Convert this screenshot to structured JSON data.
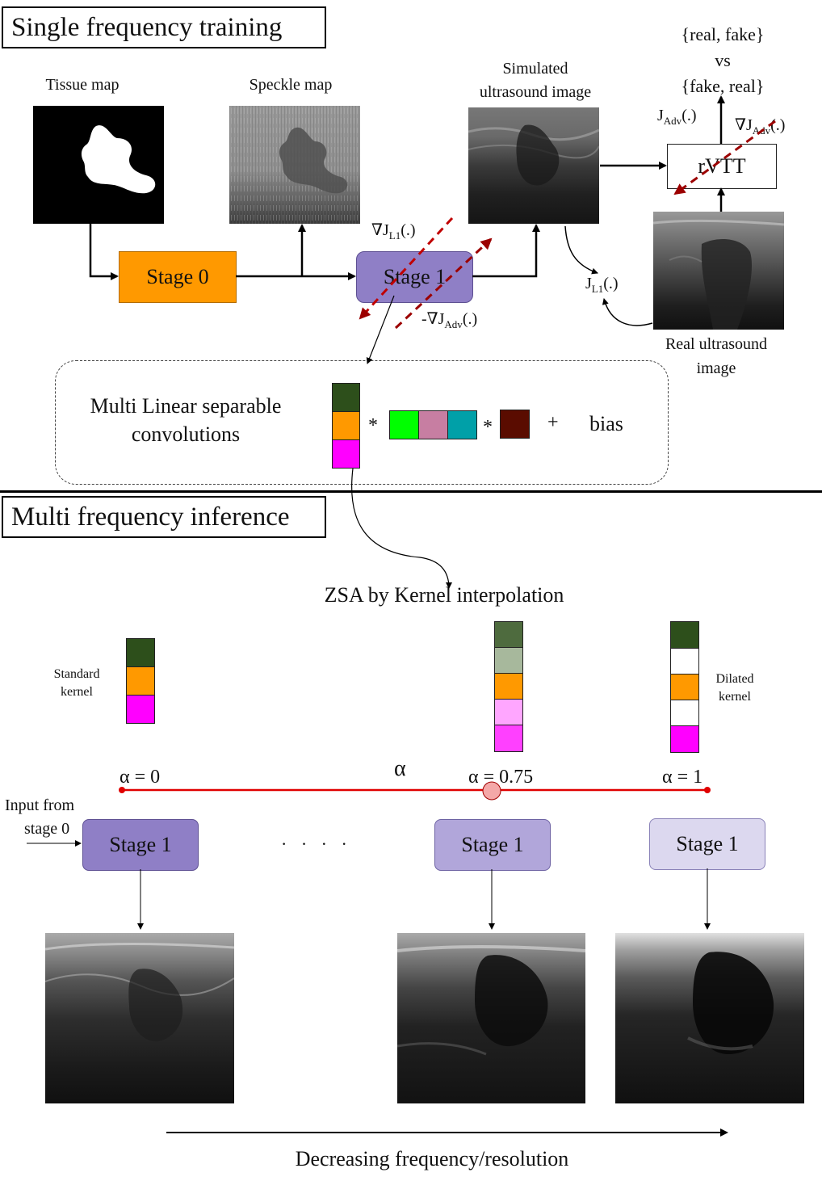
{
  "training": {
    "title": "Single frequency training",
    "tissue_label": "Tissue map",
    "speckle_label": "Speckle map",
    "simulated_label_1": "Simulated",
    "simulated_label_2": "ultrasound image",
    "stage0": "Stage 0",
    "stage1": "Stage 1",
    "rvtt": "rVTT",
    "real_fake_1": "{real, fake}",
    "real_fake_2": "vs",
    "real_fake_3": "{fake, real}",
    "real_label_1": "Real ultrasound",
    "real_label_2": "image",
    "j_l1_grad_sym": "∇J",
    "j_l1_sub": "L1",
    "j_l1_paren": "(.)",
    "j_adv_neg": "-∇J",
    "j_adv_sub": "Adv",
    "j_adv_paren": "(.)",
    "j_adv_top": "J",
    "j_adv_grad": "∇J",
    "j_l1_loss": "J",
    "j_l1_loss_sub": "L1",
    "j_l1_loss_paren": "(.)",
    "mls_1": "Multi Linear separable",
    "mls_2": "convolutions",
    "star": "*",
    "plus": "+",
    "bias": "bias"
  },
  "inference": {
    "title": "Multi frequency inference",
    "zsa": "ZSA by Kernel interpolation",
    "standard_1": "Standard",
    "standard_2": "kernel",
    "dilated_1": "Dilated",
    "dilated_2": "kernel",
    "alpha": "α",
    "alpha0": "α = 0",
    "alpha075": "α = 0.75",
    "alpha1": "α = 1",
    "input_1": "Input from",
    "input_2": "stage 0",
    "stage1": "Stage 1",
    "dots": "· · · ·",
    "decreasing": "Decreasing frequency/resolution"
  },
  "colors": {
    "stage0": "#ff9900",
    "stage1": "#8f7fc6",
    "stage1_light": "#b1a6da",
    "stage1_lighter": "#dcd8ef",
    "kernel_dark_green": "#2d4f1b",
    "kernel_orange": "#ff9900",
    "kernel_magenta": "#ff00ff",
    "kernel_green": "#00ff00",
    "kernel_pink": "#c77ea2",
    "kernel_teal": "#00a0a8",
    "kernel_brown": "#5a0c00",
    "alpha_line": "#e00000",
    "grad_dashed": "#b00000"
  }
}
